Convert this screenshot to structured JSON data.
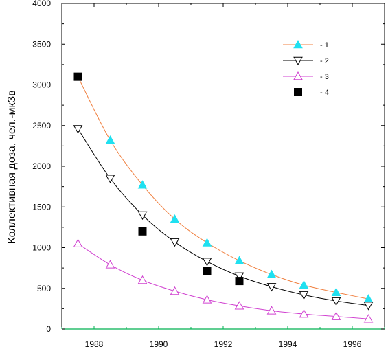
{
  "chart_data": {
    "type": "line",
    "title": "",
    "xlabel": "",
    "ylabel": "Коллективная доза, чел.-мкЗв",
    "xlim": [
      1987,
      1997
    ],
    "ylim": [
      0,
      4000
    ],
    "x_ticks": [
      1988,
      1990,
      1992,
      1994,
      1996
    ],
    "x_tick_labels": [
      "1988",
      "1990",
      "1992",
      "1994",
      "1996"
    ],
    "y_ticks": [
      0,
      500,
      1000,
      1500,
      2000,
      2500,
      3000,
      3500,
      4000
    ],
    "y_tick_labels": [
      "0",
      "500",
      "1000",
      "1500",
      "2000",
      "2500",
      "3000",
      "3500",
      "4000"
    ],
    "grid": false,
    "legend_position": "top-right",
    "series": [
      {
        "name": "- 1",
        "marker": "filled-triangle-up",
        "marker_color": "#20e0f0",
        "line_color": "#f08040",
        "x": [
          1987.5,
          1988.5,
          1989.5,
          1990.5,
          1991.5,
          1992.5,
          1993.5,
          1994.5,
          1995.5,
          1996.5
        ],
        "values": [
          3100,
          2320,
          1770,
          1350,
          1060,
          840,
          670,
          540,
          450,
          370
        ]
      },
      {
        "name": "- 2",
        "marker": "open-triangle-down",
        "marker_color": "#000000",
        "line_color": "#000000",
        "x": [
          1987.5,
          1988.5,
          1989.5,
          1990.5,
          1991.5,
          1992.5,
          1993.5,
          1994.5,
          1995.5,
          1996.5
        ],
        "values": [
          2460,
          1850,
          1400,
          1070,
          830,
          650,
          520,
          420,
          345,
          290
        ]
      },
      {
        "name": "- 3",
        "marker": "open-triangle-up",
        "marker_color": "#d040d0",
        "line_color": "#d040d0",
        "x": [
          1987.5,
          1988.5,
          1989.5,
          1990.5,
          1991.5,
          1992.5,
          1993.5,
          1994.5,
          1995.5,
          1996.5
        ],
        "values": [
          1050,
          790,
          600,
          465,
          360,
          285,
          225,
          185,
          155,
          125
        ]
      },
      {
        "name": "- 4",
        "marker": "filled-square",
        "marker_color": "#000000",
        "line_color": null,
        "x": [
          1987.5,
          1989.5,
          1991.5,
          1992.5
        ],
        "values": [
          3100,
          1200,
          710,
          590
        ]
      }
    ],
    "colors": {
      "axis": "#00b050",
      "frame": "#000000"
    }
  }
}
